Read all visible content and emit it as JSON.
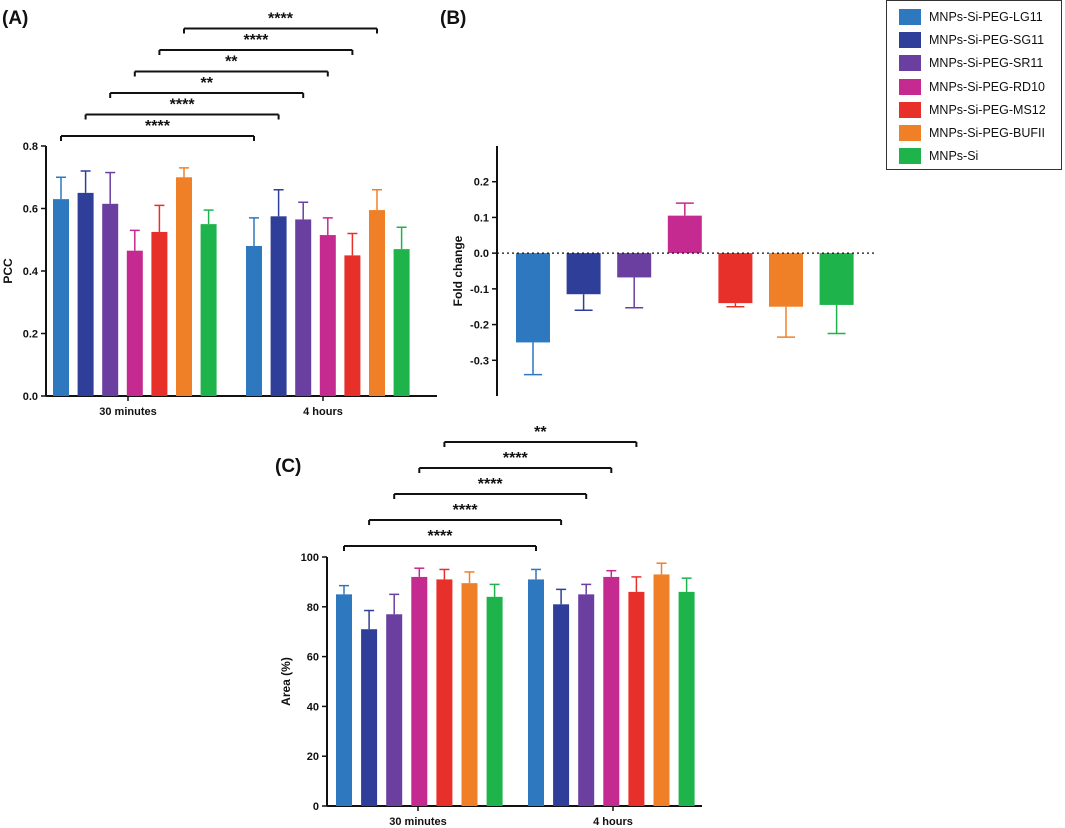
{
  "colors": [
    "#2e78c0",
    "#2f3e99",
    "#6a3fa0",
    "#c42a90",
    "#e8302a",
    "#f08028",
    "#1fb44b"
  ],
  "legend": [
    "MNPs-Si-PEG-LG11",
    "MNPs-Si-PEG-SG11",
    "MNPs-Si-PEG-SR11",
    "MNPs-Si-PEG-RD10",
    "MNPs-Si-PEG-MS12",
    "MNPs-Si-PEG-BUFII",
    "MNPs-Si"
  ],
  "chart_data": [
    {
      "panel": "(A)",
      "type": "bar",
      "ylabel": "PCC",
      "xlabel": "",
      "categories": [
        "30 minutes",
        "4 hours"
      ],
      "ylim": [
        0,
        0.8
      ],
      "yticks": [
        "0.0",
        "0.2",
        "0.4",
        "0.6",
        "0.8"
      ],
      "yticks_values": [
        0,
        0.2,
        0.4,
        0.6,
        0.8
      ],
      "series": [
        {
          "name": "MNPs-Si-PEG-LG11",
          "values": [
            0.63,
            0.48
          ],
          "errors": [
            0.07,
            0.09
          ]
        },
        {
          "name": "MNPs-Si-PEG-SG11",
          "values": [
            0.65,
            0.575
          ],
          "errors": [
            0.07,
            0.085
          ]
        },
        {
          "name": "MNPs-Si-PEG-SR11",
          "values": [
            0.615,
            0.565
          ],
          "errors": [
            0.1,
            0.055
          ]
        },
        {
          "name": "MNPs-Si-PEG-RD10",
          "values": [
            0.465,
            0.515
          ],
          "errors": [
            0.065,
            0.055
          ]
        },
        {
          "name": "MNPs-Si-PEG-MS12",
          "values": [
            0.525,
            0.45
          ],
          "errors": [
            0.085,
            0.07
          ]
        },
        {
          "name": "MNPs-Si-PEG-BUFII",
          "values": [
            0.7,
            0.595
          ],
          "errors": [
            0.03,
            0.065
          ]
        },
        {
          "name": "MNPs-Si",
          "values": [
            0.55,
            0.47
          ],
          "errors": [
            0.045,
            0.07
          ]
        }
      ],
      "significance": [
        {
          "from": [
            0,
            0
          ],
          "to": [
            1,
            0
          ],
          "label": "****"
        },
        {
          "from": [
            0,
            1
          ],
          "to": [
            1,
            1
          ],
          "label": "****"
        },
        {
          "from": [
            0,
            2
          ],
          "to": [
            1,
            2
          ],
          "label": "**"
        },
        {
          "from": [
            0,
            3
          ],
          "to": [
            1,
            3
          ],
          "label": "**"
        },
        {
          "from": [
            0,
            4
          ],
          "to": [
            1,
            4
          ],
          "label": "****"
        },
        {
          "from": [
            0,
            5
          ],
          "to": [
            1,
            5
          ],
          "label": "****"
        }
      ]
    },
    {
      "panel": "(B)",
      "type": "bar",
      "ylabel": "Fold change",
      "xlabel": "",
      "categories": [
        "MNPs-Si-PEG-LG11",
        "MNPs-Si-PEG-SG11",
        "MNPs-Si-PEG-SR11",
        "MNPs-Si-PEG-RD10",
        "MNPs-Si-PEG-MS12",
        "MNPs-Si-PEG-BUFII",
        "MNPs-Si"
      ],
      "ylim": [
        -0.4,
        0.3
      ],
      "yticks": [
        "-0.3",
        "-0.2",
        "-0.1",
        "0.0",
        "0.1",
        "0.2"
      ],
      "yticks_values": [
        -0.3,
        -0.2,
        -0.1,
        0,
        0.1,
        0.2
      ],
      "values": [
        -0.25,
        -0.115,
        -0.068,
        0.105,
        -0.14,
        -0.15,
        -0.145
      ],
      "errors": [
        0.09,
        0.045,
        0.085,
        0.035,
        0.01,
        0.085,
        0.08
      ],
      "reference_line": 0
    },
    {
      "panel": "(C)",
      "type": "bar",
      "ylabel": "Area (%)",
      "xlabel": "",
      "categories": [
        "30 minutes",
        "4 hours"
      ],
      "ylim": [
        0,
        100
      ],
      "yticks": [
        "0",
        "20",
        "40",
        "60",
        "80",
        "100"
      ],
      "yticks_values": [
        0,
        20,
        40,
        60,
        80,
        100
      ],
      "series": [
        {
          "name": "MNPs-Si-PEG-LG11",
          "values": [
            85,
            91
          ],
          "errors": [
            3.5,
            4
          ]
        },
        {
          "name": "MNPs-Si-PEG-SG11",
          "values": [
            71,
            81
          ],
          "errors": [
            7.5,
            6
          ]
        },
        {
          "name": "MNPs-Si-PEG-SR11",
          "values": [
            77,
            85
          ],
          "errors": [
            8,
            4
          ]
        },
        {
          "name": "MNPs-Si-PEG-RD10",
          "values": [
            92,
            92
          ],
          "errors": [
            3.5,
            2.5
          ]
        },
        {
          "name": "MNPs-Si-PEG-MS12",
          "values": [
            91,
            86
          ],
          "errors": [
            4,
            6
          ]
        },
        {
          "name": "MNPs-Si-PEG-BUFII",
          "values": [
            89.5,
            93
          ],
          "errors": [
            4.5,
            4.5
          ]
        },
        {
          "name": "MNPs-Si",
          "values": [
            84,
            86
          ],
          "errors": [
            5,
            5.5
          ]
        }
      ],
      "significance": [
        {
          "from": [
            0,
            0
          ],
          "to": [
            1,
            0
          ],
          "label": "****"
        },
        {
          "from": [
            0,
            1
          ],
          "to": [
            1,
            1
          ],
          "label": "****"
        },
        {
          "from": [
            0,
            2
          ],
          "to": [
            1,
            2
          ],
          "label": "****"
        },
        {
          "from": [
            0,
            3
          ],
          "to": [
            1,
            3
          ],
          "label": "****"
        },
        {
          "from": [
            0,
            4
          ],
          "to": [
            1,
            4
          ],
          "label": "**"
        }
      ]
    }
  ]
}
